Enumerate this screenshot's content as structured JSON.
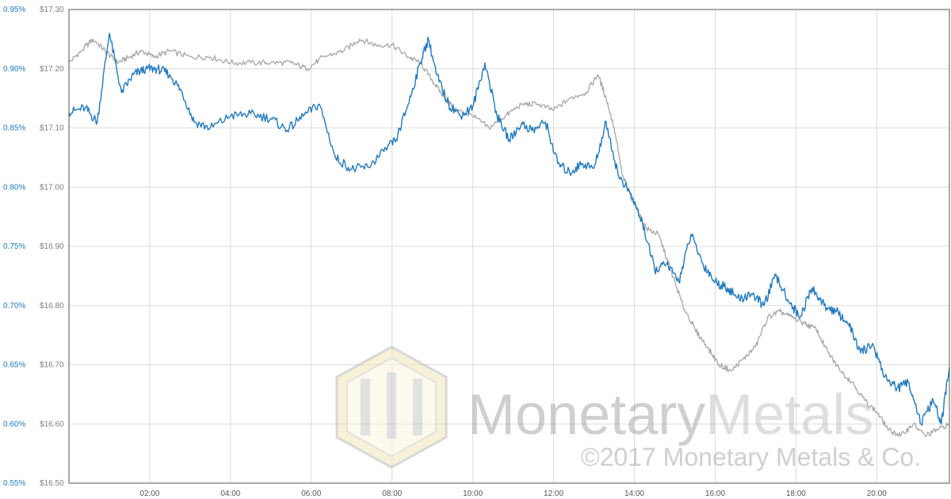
{
  "chart_data": {
    "type": "line",
    "title": "",
    "xlabel": "",
    "ylabel": "",
    "x_ticks": [
      "02:00",
      "04:00",
      "06:00",
      "08:00",
      "10:00",
      "12:00",
      "14:00",
      "16:00",
      "18:00",
      "20:00"
    ],
    "left_axis": {
      "ticks": [
        "0.95%",
        "0.90%",
        "0.85%",
        "0.80%",
        "0.75%",
        "0.70%",
        "0.65%",
        "0.60%",
        "0.55%"
      ],
      "range": [
        0.55,
        0.95
      ],
      "unit": "%",
      "color": "#1f7ac2"
    },
    "price_axis": {
      "ticks": [
        "$17.30",
        "$17.20",
        "$17.10",
        "$17.00",
        "$16.90",
        "$16.80",
        "$16.70",
        "$16.60",
        "$16.50"
      ],
      "range": [
        16.5,
        17.3
      ],
      "unit": "$"
    },
    "x_range_hours": [
      0.0,
      21.8
    ],
    "grid": true,
    "legend": "none",
    "series": [
      {
        "axis": "price",
        "color": "#a6a6a6",
        "x": [
          0.0,
          0.3,
          0.6,
          0.9,
          1.2,
          1.5,
          1.8,
          2.1,
          2.5,
          3.0,
          3.5,
          4.0,
          4.5,
          5.0,
          5.5,
          5.9,
          6.3,
          6.8,
          7.2,
          7.6,
          8.0,
          8.4,
          8.7,
          9.0,
          9.3,
          9.6,
          10.0,
          10.4,
          10.8,
          11.2,
          11.6,
          12.0,
          12.4,
          12.8,
          13.1,
          13.3,
          13.5,
          13.7,
          14.0,
          14.3,
          14.6,
          14.9,
          15.2,
          15.5,
          15.8,
          16.1,
          16.4,
          16.7,
          17.0,
          17.3,
          17.6,
          17.9,
          18.2,
          18.5,
          18.8,
          19.1,
          19.4,
          19.7,
          20.0,
          20.3,
          20.6,
          20.9,
          21.2,
          21.5,
          21.8
        ],
        "y": [
          17.21,
          17.23,
          17.25,
          17.23,
          17.21,
          17.22,
          17.23,
          17.22,
          17.23,
          17.22,
          17.22,
          17.21,
          17.21,
          17.21,
          17.21,
          17.2,
          17.22,
          17.23,
          17.25,
          17.24,
          17.24,
          17.22,
          17.21,
          17.18,
          17.15,
          17.13,
          17.12,
          17.1,
          17.12,
          17.14,
          17.14,
          17.13,
          17.15,
          17.16,
          17.19,
          17.15,
          17.1,
          17.02,
          16.97,
          16.93,
          16.92,
          16.86,
          16.8,
          16.76,
          16.73,
          16.7,
          16.69,
          16.71,
          16.73,
          16.78,
          16.79,
          16.78,
          16.77,
          16.76,
          16.72,
          16.69,
          16.67,
          16.64,
          16.62,
          16.59,
          16.58,
          16.6,
          16.58,
          16.59,
          16.6
        ]
      },
      {
        "axis": "left",
        "color": "#1f7ac2",
        "x": [
          0.0,
          0.4,
          0.7,
          1.0,
          1.3,
          1.6,
          1.9,
          2.2,
          2.5,
          2.8,
          3.1,
          3.5,
          4.0,
          4.5,
          5.0,
          5.4,
          5.8,
          6.2,
          6.6,
          7.0,
          7.4,
          7.8,
          8.1,
          8.4,
          8.7,
          8.9,
          9.1,
          9.4,
          9.7,
          10.0,
          10.3,
          10.6,
          10.9,
          11.2,
          11.5,
          11.8,
          12.1,
          12.4,
          12.7,
          13.0,
          13.3,
          13.6,
          13.9,
          14.2,
          14.5,
          14.8,
          15.1,
          15.4,
          15.7,
          16.0,
          16.3,
          16.6,
          16.9,
          17.2,
          17.5,
          17.8,
          18.1,
          18.4,
          18.7,
          19.0,
          19.3,
          19.6,
          19.9,
          20.2,
          20.5,
          20.8,
          21.1,
          21.4,
          21.6,
          21.8
        ],
        "y": [
          0.863,
          0.867,
          0.855,
          0.93,
          0.88,
          0.895,
          0.9,
          0.9,
          0.895,
          0.88,
          0.855,
          0.85,
          0.86,
          0.862,
          0.858,
          0.848,
          0.86,
          0.87,
          0.825,
          0.815,
          0.817,
          0.83,
          0.84,
          0.87,
          0.905,
          0.925,
          0.895,
          0.87,
          0.86,
          0.868,
          0.905,
          0.86,
          0.84,
          0.853,
          0.848,
          0.855,
          0.82,
          0.812,
          0.82,
          0.816,
          0.855,
          0.81,
          0.795,
          0.77,
          0.73,
          0.735,
          0.72,
          0.76,
          0.735,
          0.72,
          0.715,
          0.705,
          0.71,
          0.7,
          0.725,
          0.705,
          0.69,
          0.715,
          0.7,
          0.695,
          0.685,
          0.66,
          0.668,
          0.64,
          0.63,
          0.635,
          0.6,
          0.62,
          0.6,
          0.648
        ]
      }
    ]
  },
  "watermark": {
    "brand": "MonetaryMetals",
    "brand_word1": "Monetary",
    "brand_word2": "Metals",
    "copyright": "©2017 Monetary Metals & Co."
  }
}
